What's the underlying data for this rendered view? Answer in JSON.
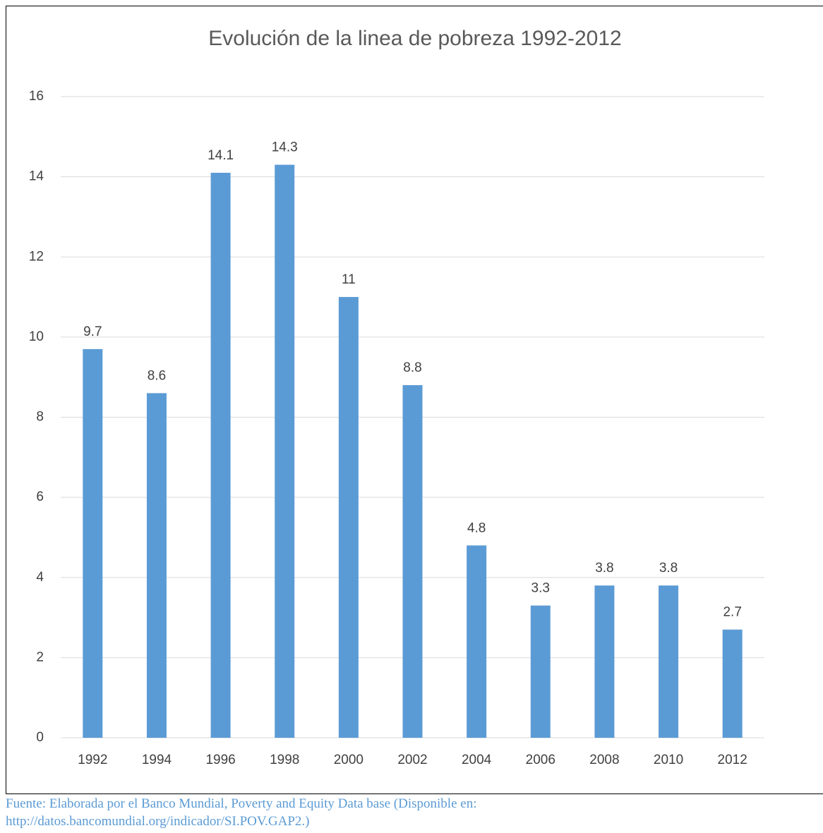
{
  "chart_data": {
    "type": "bar",
    "title": "Evolución de la linea de pobreza 1992-2012",
    "categories": [
      "1992",
      "1994",
      "1996",
      "1998",
      "2000",
      "2002",
      "2004",
      "2006",
      "2008",
      "2010",
      "2012"
    ],
    "values": [
      9.7,
      8.6,
      14.1,
      14.3,
      11,
      8.8,
      4.8,
      3.3,
      3.8,
      3.8,
      2.7
    ],
    "color": "#5b9bd5",
    "ylim": [
      0,
      16
    ],
    "yticks": [
      0,
      2,
      4,
      6,
      8,
      10,
      12,
      14,
      16
    ],
    "grid": true
  },
  "source": [
    "Fuente: Elaborada por el Banco Mundial, Poverty and Equity Data base (Disponible en:",
    "http://datos.bancomundial.org/indicador/SI.POV.GAP2.)"
  ]
}
